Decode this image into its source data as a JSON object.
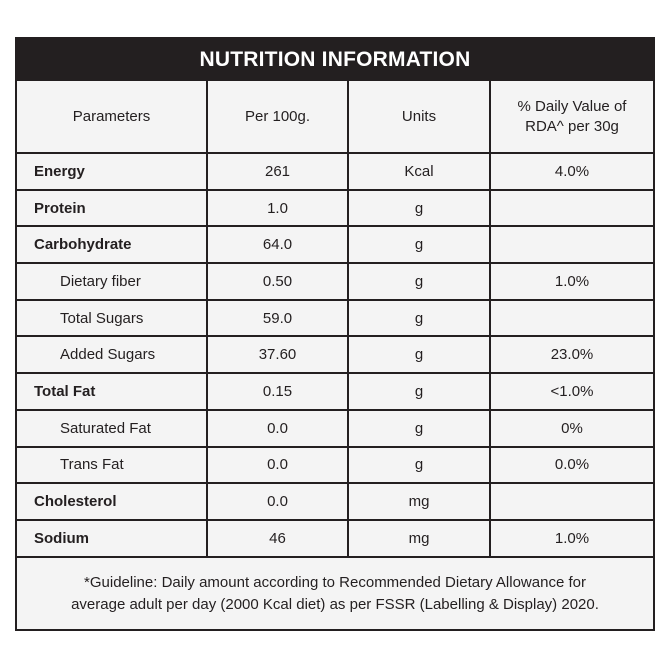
{
  "title": "NUTRITION INFORMATION",
  "headers": {
    "parameters": "Parameters",
    "per100g": "Per 100g.",
    "units": "Units",
    "daily_value_line1": "% Daily Value of",
    "daily_value_line2": "RDA^ per 30g"
  },
  "rows": [
    {
      "name": "Energy",
      "value": "261",
      "unit": "Kcal",
      "dv": "4.0%"
    },
    {
      "name": "Protein",
      "value": "1.0",
      "unit": "g",
      "dv": ""
    },
    {
      "name": "Carbohydrate",
      "value": "64.0",
      "unit": "g",
      "dv": ""
    },
    {
      "name": "Dietary fiber",
      "value": "0.50",
      "unit": "g",
      "dv": "1.0%"
    },
    {
      "name": "Total Sugars",
      "value": "59.0",
      "unit": "g",
      "dv": ""
    },
    {
      "name": "Added Sugars",
      "value": "37.60",
      "unit": "g",
      "dv": "23.0%"
    },
    {
      "name": "Total Fat",
      "value": "0.15",
      "unit": "g",
      "dv": "<1.0%"
    },
    {
      "name": "Saturated Fat",
      "value": "0.0",
      "unit": "g",
      "dv": "0%"
    },
    {
      "name": "Trans Fat",
      "value": "0.0",
      "unit": "g",
      "dv": "0.0%"
    },
    {
      "name": "Cholesterol",
      "value": "0.0",
      "unit": "mg",
      "dv": ""
    },
    {
      "name": "Sodium",
      "value": "46",
      "unit": "mg",
      "dv": "1.0%"
    }
  ],
  "footnote": {
    "line1": "*Guideline: Daily amount according to Recommended Dietary Allowance for",
    "line2": "average adult per day (2000 Kcal diet) as per FSSR (Labelling & Display) 2020."
  }
}
